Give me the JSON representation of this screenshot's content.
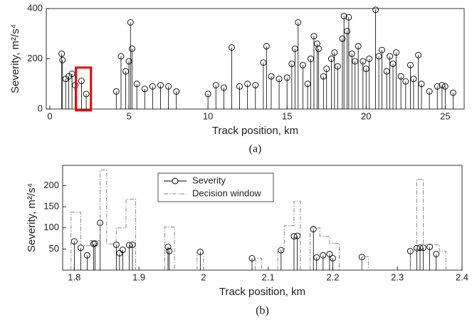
{
  "chart_data": [
    {
      "type": "stem",
      "caption": "(a)",
      "xlabel": "Track position, km",
      "ylabel": "Severity, m²/s⁴",
      "xlim": [
        0,
        26.2
      ],
      "ylim": [
        0,
        400
      ],
      "xticks": [
        0,
        5,
        10,
        15,
        20,
        25
      ],
      "yticks": [
        0,
        200,
        400
      ],
      "series": [
        {
          "color": "#000000",
          "x": [
            0.75,
            0.8,
            1.0,
            1.2,
            1.4,
            1.6,
            2.0,
            2.3,
            4.2,
            4.5,
            4.8,
            5.0,
            5.1,
            5.2,
            5.5,
            6,
            6.5,
            7,
            7.5,
            8,
            10,
            10.5,
            11,
            11.5,
            12,
            12.5,
            13.0,
            13.5,
            13.7,
            14,
            14.5,
            15,
            15.3,
            15.5,
            15.7,
            16,
            16.3,
            16.5,
            16.7,
            16.9,
            17,
            17.3,
            17.5,
            17.8,
            18,
            18.2,
            18.5,
            18.6,
            18.8,
            18.9,
            19.1,
            19.3,
            19.5,
            19.8,
            20.0,
            20.2,
            20.6,
            20.8,
            21,
            21.3,
            21.5,
            21.7,
            21.9,
            22.2,
            22.5,
            22.8,
            23.0,
            23.3,
            23.5,
            24,
            24.5,
            24.8,
            25.0,
            25.5
          ],
          "values": [
            220,
            195,
            120,
            130,
            140,
            95,
            112,
            60,
            70,
            210,
            150,
            190,
            345,
            240,
            100,
            80,
            90,
            95,
            90,
            70,
            60,
            95,
            85,
            245,
            90,
            100,
            95,
            185,
            250,
            130,
            120,
            125,
            180,
            240,
            345,
            175,
            100,
            200,
            290,
            260,
            240,
            130,
            160,
            200,
            225,
            170,
            280,
            370,
            310,
            365,
            220,
            190,
            250,
            190,
            160,
            200,
            395,
            210,
            235,
            150,
            210,
            180,
            225,
            130,
            110,
            175,
            120,
            215,
            100,
            70,
            90,
            95,
            90,
            65
          ]
        }
      ]
    },
    {
      "type": "stem",
      "caption": "(b)",
      "xlabel": "Track position, km",
      "ylabel": "Severity, m²/s⁴",
      "xlim": [
        1.782,
        2.4
      ],
      "ylim": [
        0,
        248
      ],
      "xticks": [
        1.8,
        1.9,
        2,
        2.1,
        2.2,
        2.3,
        2.4
      ],
      "yticks": [
        50,
        100,
        150,
        200
      ],
      "legend": "upper-left",
      "series": [
        {
          "name": "Severity",
          "color": "#000000",
          "x": [
            1.8,
            1.81,
            1.82,
            1.83,
            1.832,
            1.84,
            1.865,
            1.87,
            1.875,
            1.885,
            1.89,
            1.945,
            1.947,
            1.995,
            2.075,
            2.12,
            2.14,
            2.145,
            2.17,
            2.175,
            2.185,
            2.195,
            2.2,
            2.245,
            2.32,
            2.33,
            2.335,
            2.34,
            2.35,
            2.36
          ],
          "values": [
            68,
            53,
            35,
            62,
            63,
            112,
            60,
            40,
            48,
            59,
            60,
            55,
            45,
            43,
            28,
            47,
            80,
            81,
            97,
            30,
            35,
            38,
            28,
            31,
            45,
            52,
            53,
            53,
            55,
            38
          ]
        },
        {
          "name": "Decision window",
          "color": "#888888",
          "style": "dashdot",
          "x": [
            1.795,
            1.795,
            1.81,
            1.81,
            1.825,
            1.825,
            1.84,
            1.84,
            1.85,
            1.85,
            1.865,
            1.865,
            1.88,
            1.88,
            1.895,
            1.895,
            null,
            1.94,
            1.94,
            1.955,
            1.955,
            null,
            1.99,
            1.99,
            2.0,
            2.0,
            null,
            2.08,
            2.08,
            2.09,
            2.09,
            null,
            2.115,
            2.115,
            2.125,
            2.125,
            2.14,
            2.14,
            2.15,
            2.15,
            null,
            2.165,
            2.165,
            2.18,
            2.18,
            2.195,
            2.195,
            2.21,
            2.21,
            null,
            2.245,
            2.245,
            2.255,
            2.255,
            null,
            2.32,
            2.32,
            2.33,
            2.33,
            2.34,
            2.34,
            2.365,
            2.365,
            2.375,
            2.375
          ],
          "values": [
            0,
            137,
            137,
            58,
            58,
            70,
            70,
            237,
            237,
            62,
            62,
            100,
            100,
            168,
            168,
            0,
            null,
            0,
            102,
            102,
            0,
            null,
            0,
            45,
            45,
            0,
            null,
            0,
            28,
            28,
            0,
            null,
            0,
            48,
            48,
            105,
            105,
            163,
            163,
            0,
            null,
            0,
            100,
            100,
            80,
            80,
            63,
            63,
            0,
            null,
            0,
            32,
            32,
            0,
            null,
            0,
            50,
            50,
            215,
            215,
            60,
            60,
            45,
            45,
            0
          ]
        }
      ]
    }
  ]
}
